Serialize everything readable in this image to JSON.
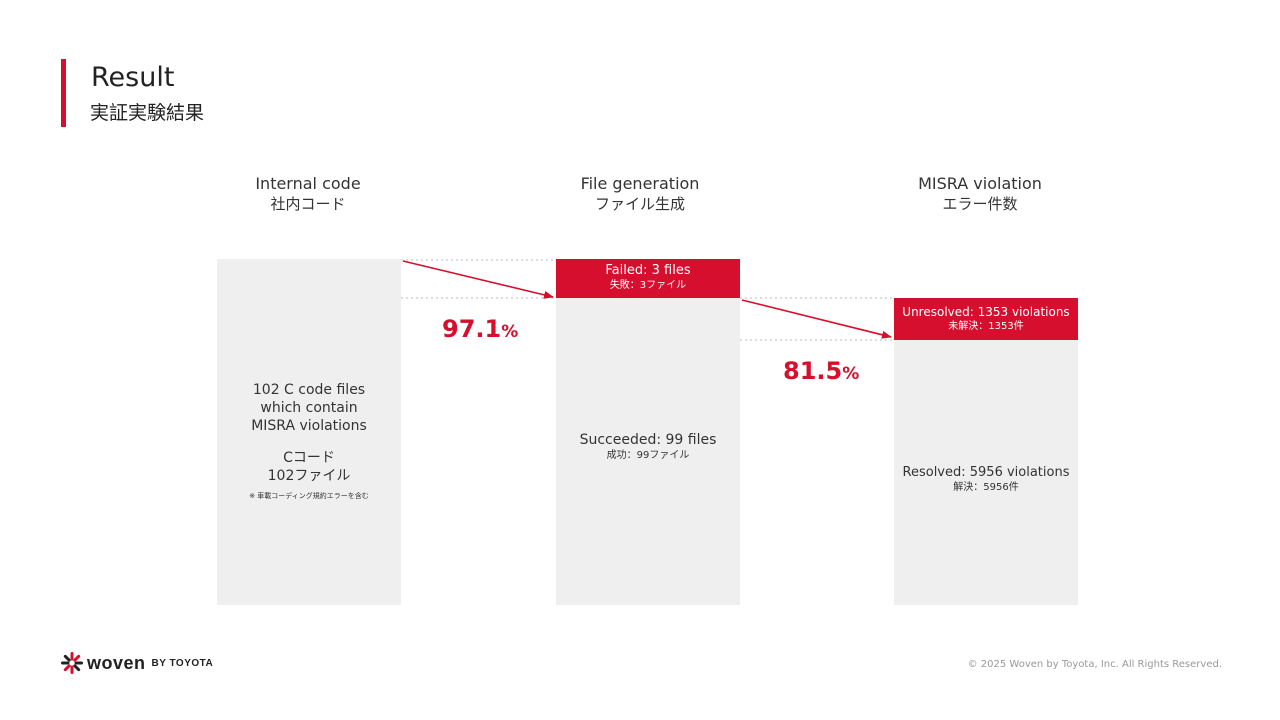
{
  "header": {
    "title_en": "Result",
    "title_ja": "実証実験結果"
  },
  "columns": [
    {
      "title_en": "Internal code",
      "title_ja": "社内コード"
    },
    {
      "title_en": "File generation",
      "title_ja": "ファイル生成"
    },
    {
      "title_en": "MISRA violation",
      "title_ja": "エラー件数"
    }
  ],
  "internal": {
    "line1": "102 C code files",
    "line2": "which contain",
    "line3": "MISRA violations",
    "ja1": "Cコード",
    "ja2": "102ファイル",
    "note": "※ 車載コーディング規約エラーを含む"
  },
  "generation": {
    "failed_en": "Failed: 3 files",
    "failed_ja": "失敗：3ファイル",
    "success_en": "Succeeded: 99 files",
    "success_ja": "成功：99ファイル",
    "rate": "97.1",
    "unit": "%"
  },
  "violation": {
    "unresolved_en": "Unresolved: 1353 violations",
    "unresolved_ja": "未解決：1353件",
    "resolved_en": "Resolved: 5956 violations",
    "resolved_ja": "解決：5956件",
    "rate": "81.5",
    "unit": "%"
  },
  "footer": {
    "logo": "woven",
    "logo_sub": "BY TOYOTA",
    "copyright": "© 2025 Woven by Toyota, Inc. All Rights Reserved."
  },
  "colors": {
    "accent": "#d50f2d",
    "panel": "#efefef"
  }
}
